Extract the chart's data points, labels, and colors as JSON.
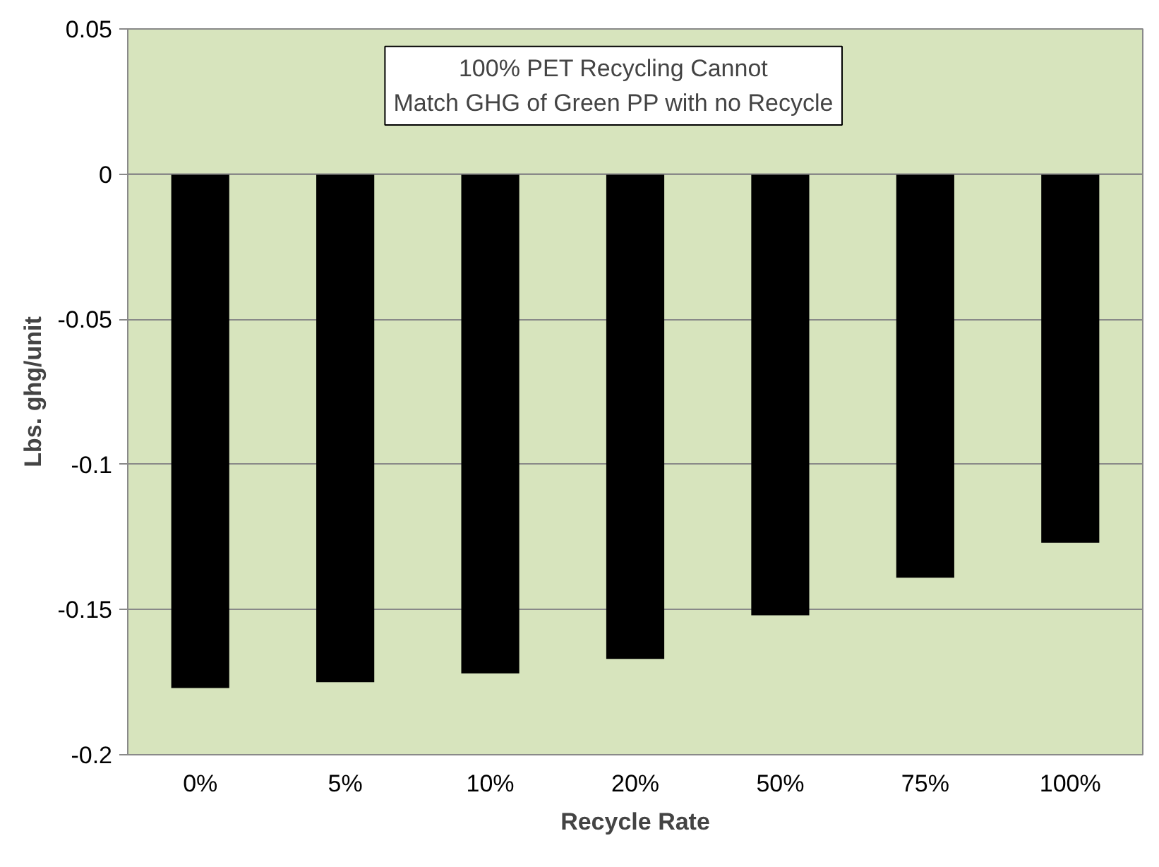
{
  "chart_data": {
    "type": "bar",
    "xlabel": "Recycle Rate",
    "ylabel": "Lbs. ghg/unit",
    "categories": [
      "0%",
      "5%",
      "10%",
      "20%",
      "50%",
      "75%",
      "100%"
    ],
    "values": [
      -0.177,
      -0.175,
      -0.172,
      -0.167,
      -0.152,
      -0.139,
      -0.127
    ],
    "color": "#000000",
    "ylim": [
      -0.2,
      0.05
    ],
    "yticks": [
      {
        "value": -0.2,
        "label": "-0.2"
      },
      {
        "value": -0.15,
        "label": "-0.15"
      },
      {
        "value": -0.1,
        "label": "-0.1"
      },
      {
        "value": -0.05,
        "label": "-0.05"
      },
      {
        "value": 0,
        "label": "0"
      },
      {
        "value": 0.05,
        "label": "0.05"
      }
    ],
    "grid": "y",
    "annotations": [
      "100% PET Recycling Cannot\nMatch GHG of Green PP with no Recycle"
    ]
  }
}
